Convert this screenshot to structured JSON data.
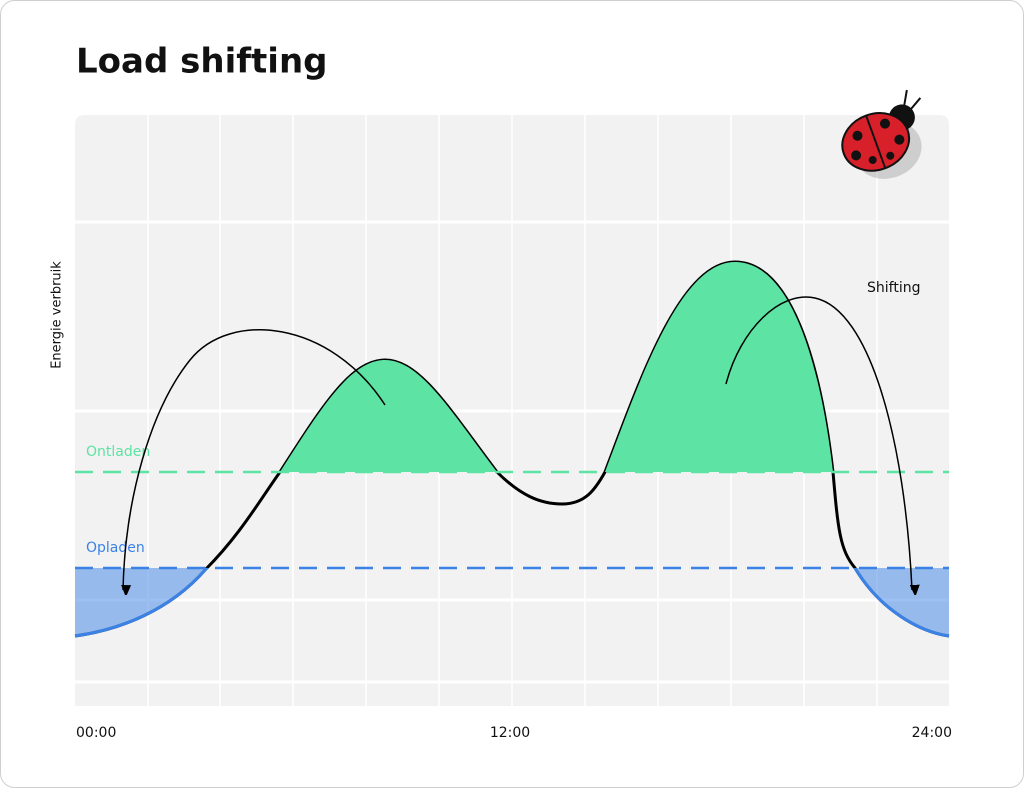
{
  "chart_data": {
    "type": "area",
    "title": "Load shifting",
    "y_label": "Energie verbruik",
    "x_tick_labels": [
      "00:00",
      "12:00",
      "24:00"
    ],
    "annotations": {
      "discharge": "Ontladen",
      "charge": "Opladen",
      "shifting": "Shifting"
    },
    "discharge_color": "#5de3a3",
    "charge_color": "#3b82e6"
  }
}
